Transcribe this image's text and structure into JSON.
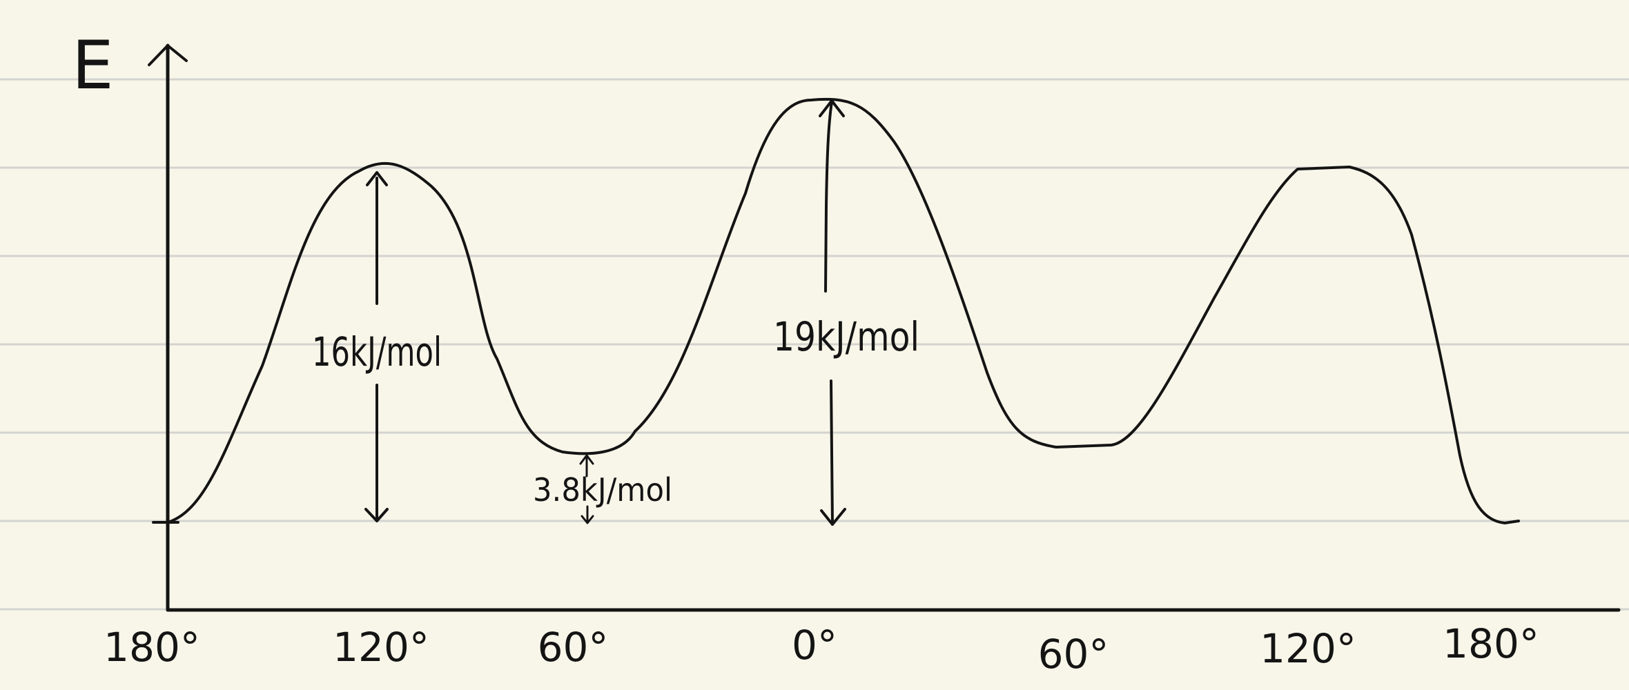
{
  "axes": {
    "y_label": "E"
  },
  "x_ticks": [
    "180°",
    "120°",
    "60°",
    "0°",
    "60°",
    "120°",
    "180°"
  ],
  "annotations": {
    "barrier_left": "16kJ/mol",
    "barrier_center": "19kJ/mol",
    "gauche_gap": "3.8kJ/mol"
  }
}
